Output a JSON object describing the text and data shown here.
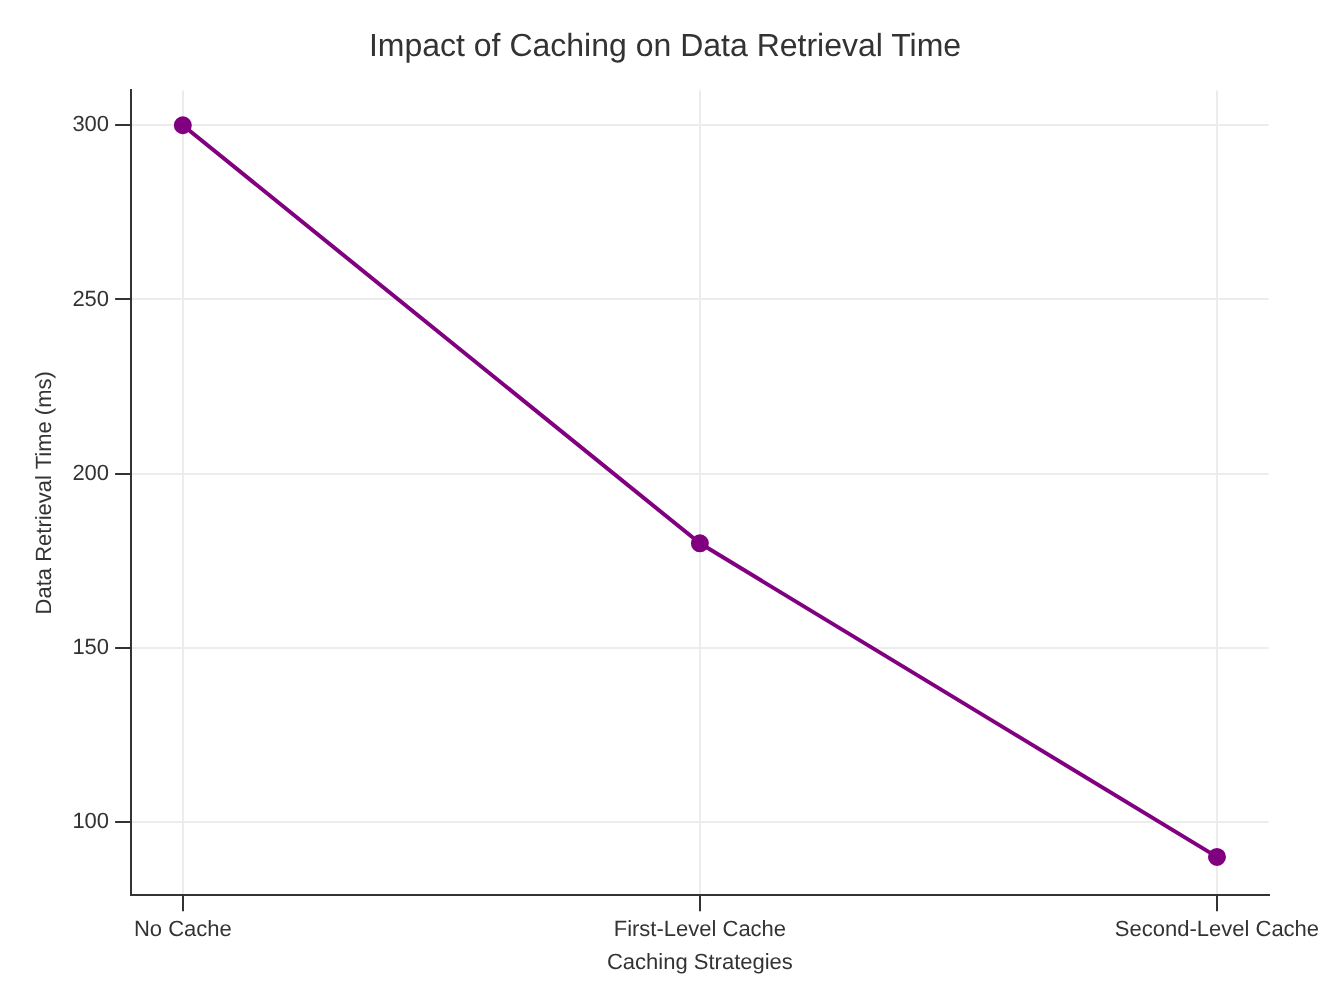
{
  "chart_data": {
    "type": "line",
    "title": "Impact of Caching on Data Retrieval Time",
    "xlabel": "Caching Strategies",
    "ylabel": "Data Retrieval Time (ms)",
    "categories": [
      "No Cache",
      "First-Level Cache",
      "Second-Level Cache"
    ],
    "series": [
      {
        "color": "#800080",
        "values": [
          300,
          180,
          90
        ]
      }
    ],
    "ylim": [
      79,
      310
    ],
    "yticks": [
      100,
      150,
      200,
      250,
      300
    ],
    "grid": true,
    "marker": "circle",
    "line_style": "solid"
  }
}
